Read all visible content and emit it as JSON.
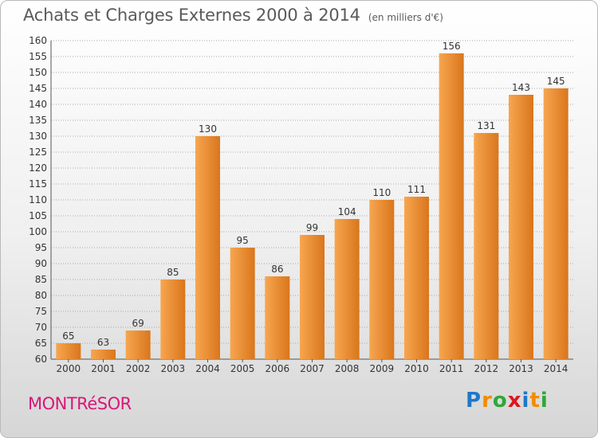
{
  "header": {
    "title": "Achats et Charges Externes 2000 à 2014",
    "unit": "(en milliers d'€)"
  },
  "footer": {
    "commune": "MONTRéSOR",
    "logo_letters": [
      "P",
      "r",
      "o",
      "x",
      "i",
      "t",
      "i"
    ],
    "logo_colors": [
      "#1e78c8",
      "#f28c00",
      "#2ea836",
      "#e0161d",
      "#1e78c8",
      "#f28c00",
      "#2ea836"
    ]
  },
  "colors": {
    "bar_light": "#f7a650",
    "bar_dark": "#d9761c",
    "grid": "#a9a9a9",
    "commune": "#d8177a"
  },
  "chart_data": {
    "type": "bar",
    "title": "Achats et Charges Externes 2000 à 2014",
    "categories": [
      "2000",
      "2001",
      "2002",
      "2003",
      "2004",
      "2005",
      "2006",
      "2007",
      "2008",
      "2009",
      "2010",
      "2011",
      "2012",
      "2013",
      "2014"
    ],
    "values": [
      65,
      63,
      69,
      85,
      130,
      95,
      86,
      99,
      104,
      110,
      111,
      156,
      131,
      143,
      145
    ],
    "ylim": [
      60,
      160
    ],
    "yticks": [
      60,
      65,
      70,
      75,
      80,
      85,
      90,
      95,
      100,
      105,
      110,
      115,
      120,
      125,
      130,
      135,
      140,
      145,
      150,
      155,
      160
    ],
    "grid": true,
    "data_labels": true
  }
}
